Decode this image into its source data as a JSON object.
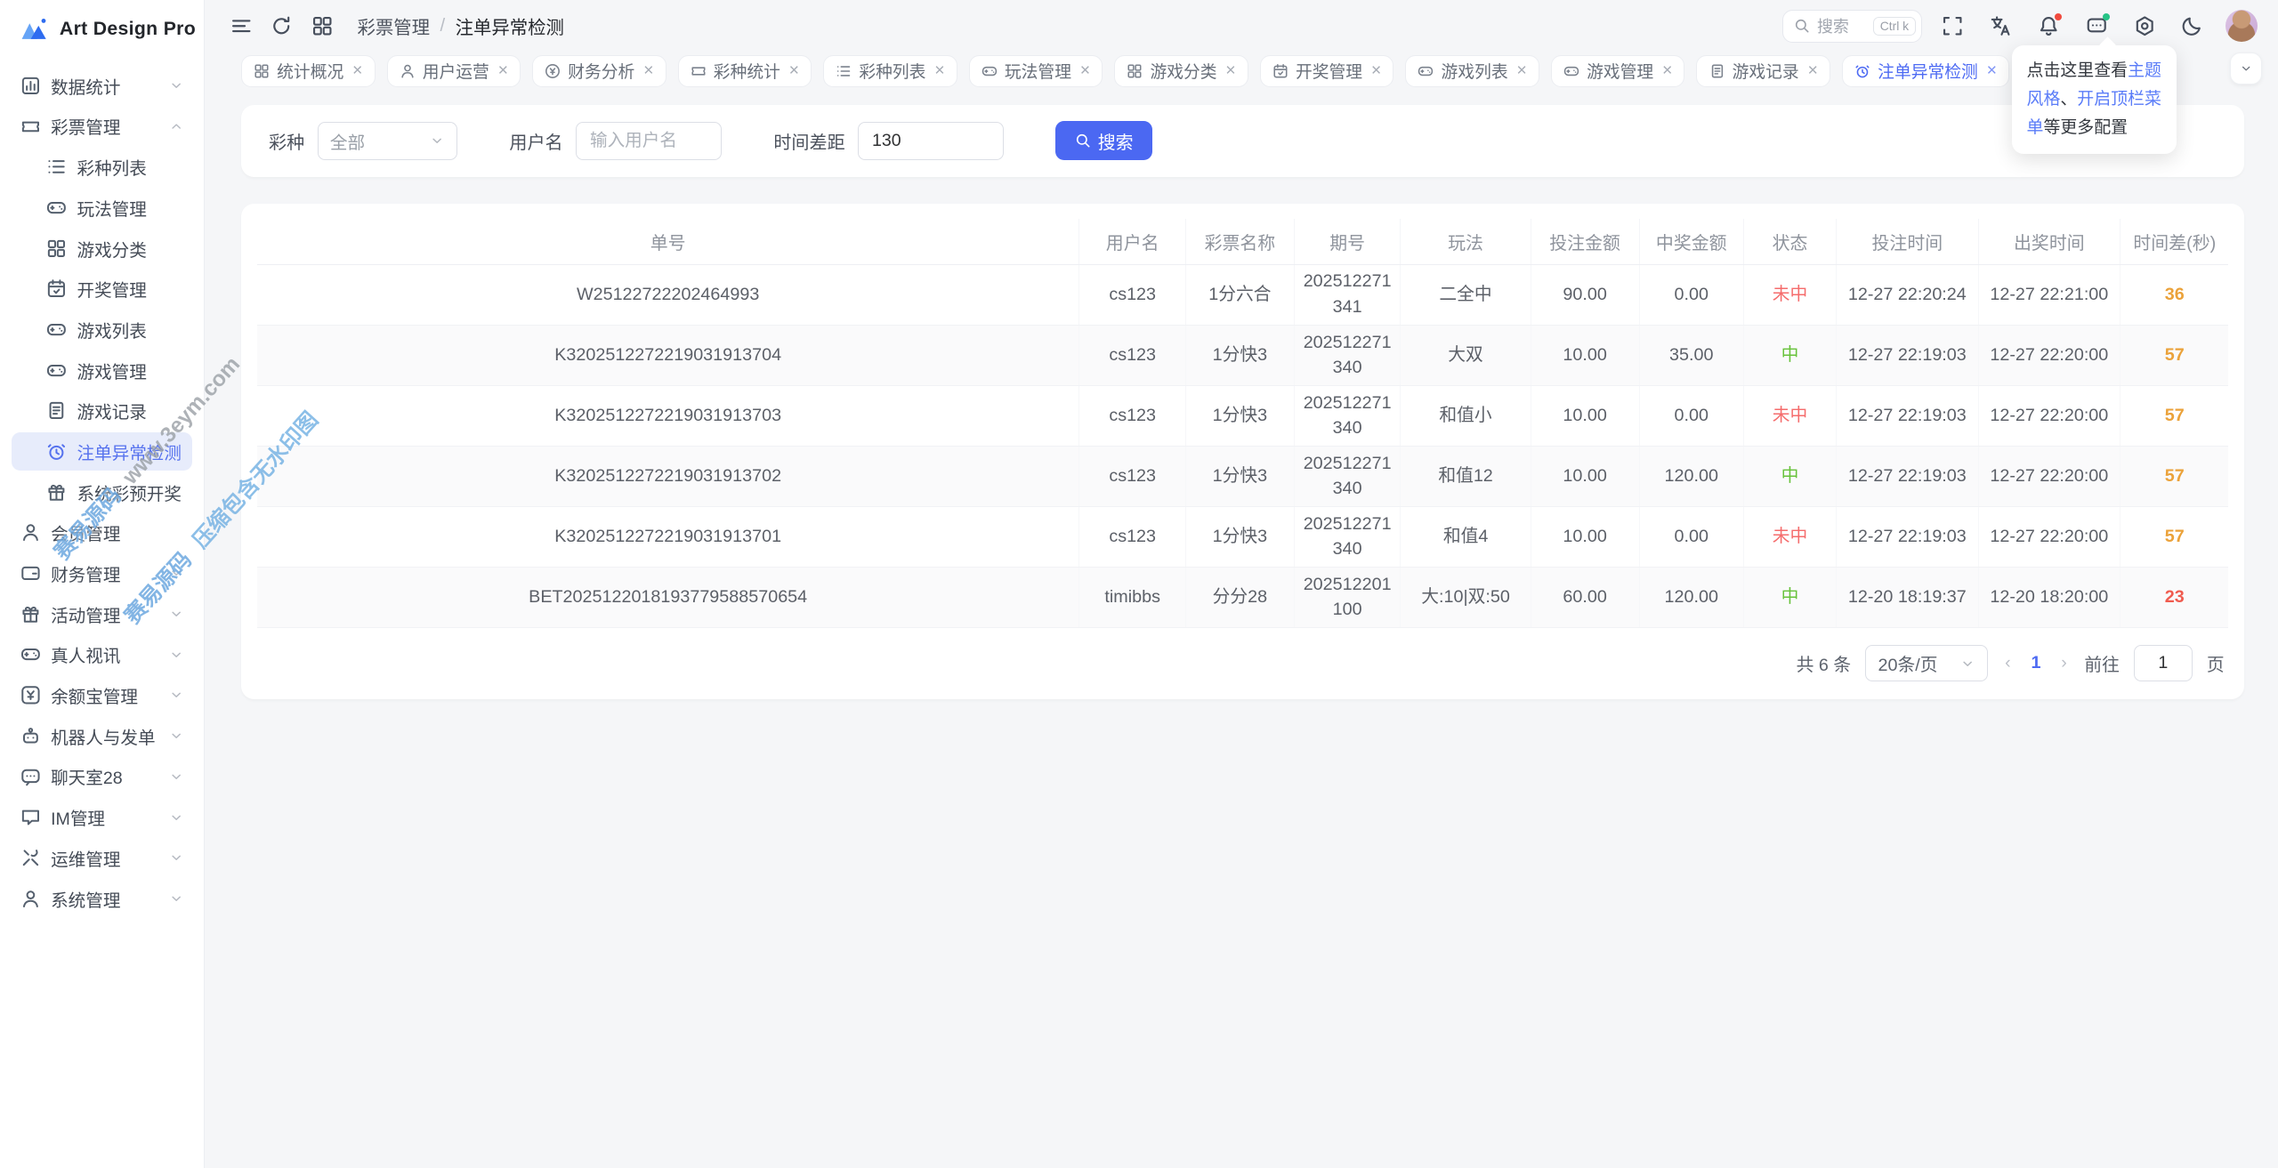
{
  "app": {
    "title": "Art Design Pro"
  },
  "header": {
    "breadcrumb": {
      "parent": "彩票管理",
      "separator": "/",
      "current": "注单异常检测"
    },
    "search": {
      "placeholder": "搜索",
      "shortcut": "Ctrl k"
    }
  },
  "tooltip": {
    "text_before": "点击这里查看",
    "link_theme": "主题风格",
    "separator": "、",
    "link_topbar": "开启顶栏菜单",
    "text_after": "等更多配置"
  },
  "sidebar": {
    "items": [
      {
        "label": "数据统计",
        "icon": "chart",
        "level": 1,
        "chevron": "down"
      },
      {
        "label": "彩票管理",
        "icon": "ticket",
        "level": 1,
        "chevron": "up"
      },
      {
        "label": "彩种列表",
        "icon": "list",
        "level": 2
      },
      {
        "label": "玩法管理",
        "icon": "gamepad",
        "level": 2
      },
      {
        "label": "游戏分类",
        "icon": "grid",
        "level": 2
      },
      {
        "label": "开奖管理",
        "icon": "calendar",
        "level": 2
      },
      {
        "label": "游戏列表",
        "icon": "gamepad",
        "level": 2
      },
      {
        "label": "游戏管理",
        "icon": "gamepad",
        "level": 2
      },
      {
        "label": "游戏记录",
        "icon": "doc",
        "level": 2
      },
      {
        "label": "注单异常检测",
        "icon": "alarm",
        "level": 2,
        "active": true
      },
      {
        "label": "系统彩预开奖",
        "icon": "gift",
        "level": 2
      },
      {
        "label": "会员管理",
        "icon": "user",
        "level": 1
      },
      {
        "label": "财务管理",
        "icon": "card",
        "level": 1,
        "chevron": "down"
      },
      {
        "label": "活动管理",
        "icon": "gift",
        "level": 1,
        "chevron": "down"
      },
      {
        "label": "真人视讯",
        "icon": "gamepad",
        "level": 1,
        "chevron": "down"
      },
      {
        "label": "余额宝管理",
        "icon": "money",
        "level": 1,
        "chevron": "down"
      },
      {
        "label": "机器人与发单",
        "icon": "robot",
        "level": 1,
        "chevron": "down"
      },
      {
        "label": "聊天室28",
        "icon": "chatdots",
        "level": 1,
        "chevron": "down"
      },
      {
        "label": "IM管理",
        "icon": "chatsq",
        "level": 1,
        "chevron": "down"
      },
      {
        "label": "运维管理",
        "icon": "tools",
        "level": 1,
        "chevron": "down"
      },
      {
        "label": "系统管理",
        "icon": "usergear",
        "level": 1,
        "chevron": "down"
      }
    ]
  },
  "tabs": [
    {
      "label": "统计概况",
      "icon": "grid"
    },
    {
      "label": "用户运营",
      "icon": "user"
    },
    {
      "label": "财务分析",
      "icon": "moneyc"
    },
    {
      "label": "彩种统计",
      "icon": "ticket"
    },
    {
      "label": "彩种列表",
      "icon": "list"
    },
    {
      "label": "玩法管理",
      "icon": "gamepad"
    },
    {
      "label": "游戏分类",
      "icon": "grid"
    },
    {
      "label": "开奖管理",
      "icon": "calendar"
    },
    {
      "label": "游戏列表",
      "icon": "gamepad"
    },
    {
      "label": "游戏管理",
      "icon": "gamepad"
    },
    {
      "label": "游戏记录",
      "icon": "doc"
    },
    {
      "label": "注单异常检测",
      "icon": "alarm",
      "active": true
    }
  ],
  "filter": {
    "lottery_label": "彩种",
    "lottery_value": "全部",
    "username_label": "用户名",
    "username_placeholder": "输入用户名",
    "gap_label": "时间差距",
    "gap_value": "130",
    "search_button": "搜索"
  },
  "table": {
    "columns": [
      "单号",
      "用户名",
      "彩票名称",
      "期号",
      "玩法",
      "投注金额",
      "中奖金额",
      "状态",
      "投注时间",
      "出奖时间",
      "时间差(秒)"
    ],
    "rows": [
      {
        "order": "W25122722202464993",
        "user": "cs123",
        "lottery": "1分六合",
        "period": "202512271341",
        "play": "二全中",
        "bet": "90.00",
        "win": "0.00",
        "status": "未中",
        "status_type": "lose",
        "bet_time": "12-27 22:20:24",
        "draw_time": "12-27 22:21:00",
        "diff": "36",
        "diff_color": "orange"
      },
      {
        "order": "K3202512272219031913704",
        "user": "cs123",
        "lottery": "1分快3",
        "period": "202512271340",
        "play": "大双",
        "bet": "10.00",
        "win": "35.00",
        "status": "中",
        "status_type": "win",
        "bet_time": "12-27 22:19:03",
        "draw_time": "12-27 22:20:00",
        "diff": "57",
        "diff_color": "orange"
      },
      {
        "order": "K3202512272219031913703",
        "user": "cs123",
        "lottery": "1分快3",
        "period": "202512271340",
        "play": "和值小",
        "bet": "10.00",
        "win": "0.00",
        "status": "未中",
        "status_type": "lose",
        "bet_time": "12-27 22:19:03",
        "draw_time": "12-27 22:20:00",
        "diff": "57",
        "diff_color": "orange"
      },
      {
        "order": "K3202512272219031913702",
        "user": "cs123",
        "lottery": "1分快3",
        "period": "202512271340",
        "play": "和值12",
        "bet": "10.00",
        "win": "120.00",
        "status": "中",
        "status_type": "win",
        "bet_time": "12-27 22:19:03",
        "draw_time": "12-27 22:20:00",
        "diff": "57",
        "diff_color": "orange"
      },
      {
        "order": "K3202512272219031913701",
        "user": "cs123",
        "lottery": "1分快3",
        "period": "202512271340",
        "play": "和值4",
        "bet": "10.00",
        "win": "0.00",
        "status": "未中",
        "status_type": "lose",
        "bet_time": "12-27 22:19:03",
        "draw_time": "12-27 22:20:00",
        "diff": "57",
        "diff_color": "orange"
      },
      {
        "order": "BET2025122018193779588570654",
        "user": "timibbs",
        "lottery": "分分28",
        "period": "202512201100",
        "play": "大:10|双:50",
        "bet": "60.00",
        "win": "120.00",
        "status": "中",
        "status_type": "win",
        "bet_time": "12-20 18:19:37",
        "draw_time": "12-20 18:20:00",
        "diff": "23",
        "diff_color": "red"
      }
    ]
  },
  "pagination": {
    "total": "共 6 条",
    "page_size": "20条/页",
    "current_page": "1",
    "goto_label": "前往",
    "goto_value": "1",
    "page_unit": "页"
  },
  "watermark": {
    "brand": "赛易源码",
    "site": "www.3eym.com",
    "note": "压缩包含无水印图"
  },
  "colors": {
    "accent": "#4b68f2",
    "active_bg": "#e7ecfb",
    "lose_red": "#f56c6c",
    "win_green": "#67c23a",
    "diff_orange": "#eba23a",
    "diff_red": "#f05b4f"
  }
}
